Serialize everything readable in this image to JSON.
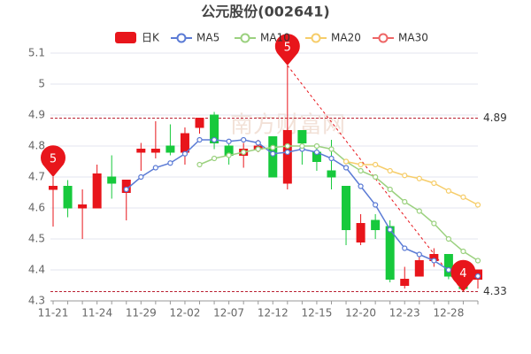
{
  "chart_data": {
    "type": "candlestick",
    "title": "公元股份(002641)",
    "categories": [
      "11-21",
      null,
      null,
      "11-24",
      null,
      null,
      "11-29",
      null,
      null,
      "12-02",
      null,
      null,
      "12-07",
      null,
      null,
      "12-12",
      null,
      null,
      "12-15",
      null,
      null,
      "12-20",
      null,
      null,
      "12-23",
      null,
      null,
      "12-28",
      null,
      null
    ],
    "candles": {
      "name": "日K",
      "up_color": "#e8151b",
      "down_color": "#17c93c",
      "open": [
        4.66,
        4.67,
        4.6,
        4.6,
        4.7,
        4.65,
        4.78,
        4.78,
        4.8,
        4.78,
        4.86,
        4.9,
        4.8,
        4.77,
        4.79,
        4.83,
        4.68,
        4.85,
        4.78,
        4.72,
        4.67,
        4.49,
        4.56,
        4.54,
        4.35,
        4.38,
        4.43,
        4.45,
        4.37,
        4.37
      ],
      "close": [
        4.67,
        4.6,
        4.61,
        4.71,
        4.68,
        4.69,
        4.79,
        4.79,
        4.78,
        4.84,
        4.89,
        4.81,
        4.77,
        4.79,
        4.8,
        4.7,
        4.85,
        4.81,
        4.75,
        4.7,
        4.53,
        4.55,
        4.53,
        4.37,
        4.37,
        4.43,
        4.45,
        4.38,
        4.34,
        4.4
      ],
      "high": [
        4.7,
        4.69,
        4.66,
        4.74,
        4.77,
        4.69,
        4.81,
        4.88,
        4.87,
        4.86,
        4.89,
        4.91,
        4.81,
        4.81,
        4.82,
        4.83,
        5.06,
        4.85,
        4.8,
        4.82,
        4.67,
        4.58,
        4.58,
        4.56,
        4.41,
        4.45,
        4.47,
        4.45,
        4.4,
        4.4
      ],
      "low": [
        4.54,
        4.57,
        4.5,
        4.6,
        4.63,
        4.56,
        4.72,
        4.76,
        4.77,
        4.74,
        4.84,
        4.79,
        4.74,
        4.73,
        4.78,
        4.7,
        4.66,
        4.74,
        4.72,
        4.66,
        4.48,
        4.48,
        4.5,
        4.36,
        4.34,
        4.38,
        4.41,
        4.37,
        4.33,
        4.34
      ]
    },
    "lines": [
      {
        "name": "MA5",
        "color": "#5b7bd5",
        "values": [
          null,
          null,
          null,
          null,
          null,
          4.66,
          4.7,
          4.73,
          4.745,
          4.775,
          4.82,
          4.82,
          4.815,
          4.82,
          4.81,
          4.775,
          4.78,
          4.79,
          4.78,
          4.76,
          4.73,
          4.67,
          4.61,
          4.53,
          4.47,
          4.45,
          4.43,
          4.4,
          4.37,
          4.38
        ]
      },
      {
        "name": "MA10",
        "color": "#9bd17f",
        "values": [
          null,
          null,
          null,
          null,
          null,
          null,
          null,
          null,
          null,
          null,
          4.74,
          4.76,
          4.77,
          4.78,
          4.79,
          4.795,
          4.8,
          4.8,
          4.8,
          4.79,
          4.75,
          4.72,
          4.7,
          4.66,
          4.62,
          4.59,
          4.55,
          4.5,
          4.46,
          4.43
        ]
      },
      {
        "name": "MA20",
        "color": "#f6cd6a",
        "values": [
          null,
          null,
          null,
          null,
          null,
          null,
          null,
          null,
          null,
          null,
          null,
          null,
          null,
          null,
          null,
          null,
          null,
          null,
          null,
          null,
          4.75,
          4.74,
          4.74,
          4.72,
          4.705,
          4.695,
          4.68,
          4.655,
          4.635,
          4.61
        ]
      },
      {
        "name": "MA30",
        "color": "#ee6666",
        "values": [
          null,
          null,
          null,
          null,
          null,
          null,
          null,
          null,
          null,
          null,
          null,
          null,
          null,
          null,
          null,
          null,
          null,
          null,
          null,
          null,
          null,
          null,
          null,
          null,
          null,
          null,
          null,
          null,
          null,
          null
        ]
      }
    ],
    "ylim": [
      4.3,
      5.1
    ],
    "yticks": [
      4.3,
      4.4,
      4.5,
      4.6,
      4.7,
      4.8,
      4.9,
      5,
      5.1
    ],
    "grid": true,
    "hlines": [
      4.89,
      4.33
    ],
    "annotations": [
      "5",
      "5",
      "4"
    ],
    "watermark": "南方财富网"
  }
}
